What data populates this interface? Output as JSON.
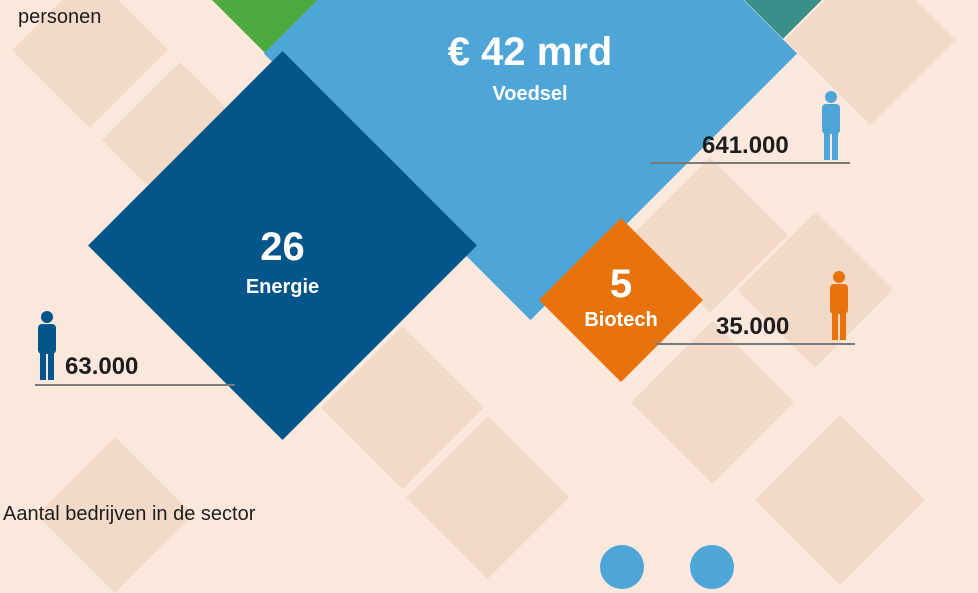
{
  "header_caption": "personen",
  "footer_caption": "Aantal bedrijven in de sector",
  "sectors": {
    "voedsel": {
      "value": "€ 42 mrd",
      "name": "Voedsel",
      "employees": "641.000",
      "color": "#4ea6d8"
    },
    "energie": {
      "value": "26",
      "name": "Energie",
      "employees": "63.000",
      "color": "#04558a"
    },
    "biotech": {
      "value": "5",
      "name": "Biotech",
      "employees": "35.000",
      "color": "#e8730d"
    }
  },
  "accent_colors": {
    "green": "#4caa3f",
    "teal": "#3b8f8b",
    "tile": "#f3d9c8",
    "background": "#fbe8dc"
  },
  "icons": [
    "person-icon"
  ]
}
